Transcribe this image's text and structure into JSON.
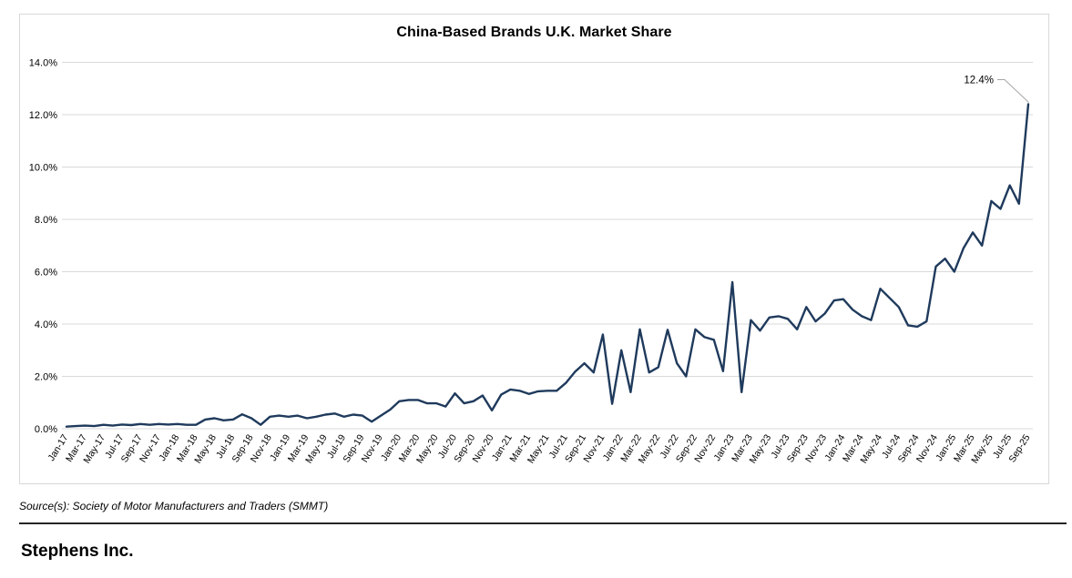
{
  "chart": {
    "colors": {
      "line": "#1f3a5c",
      "grid": "#d9d9d9",
      "frame": "#d9d9d9",
      "axis_text": "#000000",
      "annotation_text": "#000000",
      "annotation_leader": "#a6a6a6"
    }
  },
  "chart_data": {
    "type": "line",
    "title": "China-Based Brands U.K. Market Share",
    "xlabel": "",
    "ylabel": "",
    "ylim": [
      0,
      14
    ],
    "ytick_step": 2,
    "ytick_labels": [
      "0.0%",
      "2.0%",
      "4.0%",
      "6.0%",
      "8.0%",
      "10.0%",
      "12.0%",
      "14.0%"
    ],
    "x_tick_interval": 2,
    "grid": "horizontal",
    "legend": "none",
    "annotation": {
      "label": "12.4%",
      "x": "Sep-25",
      "value": 12.4
    },
    "x": [
      "Jan-17",
      "Feb-17",
      "Mar-17",
      "Apr-17",
      "May-17",
      "Jun-17",
      "Jul-17",
      "Aug-17",
      "Sep-17",
      "Oct-17",
      "Nov-17",
      "Dec-17",
      "Jan-18",
      "Feb-18",
      "Mar-18",
      "Apr-18",
      "May-18",
      "Jun-18",
      "Jul-18",
      "Aug-18",
      "Sep-18",
      "Oct-18",
      "Nov-18",
      "Dec-18",
      "Jan-19",
      "Feb-19",
      "Mar-19",
      "Apr-19",
      "May-19",
      "Jun-19",
      "Jul-19",
      "Aug-19",
      "Sep-19",
      "Oct-19",
      "Nov-19",
      "Dec-19",
      "Jan-20",
      "Feb-20",
      "Mar-20",
      "Apr-20",
      "May-20",
      "Jun-20",
      "Jul-20",
      "Aug-20",
      "Sep-20",
      "Oct-20",
      "Nov-20",
      "Dec-20",
      "Jan-21",
      "Feb-21",
      "Mar-21",
      "Apr-21",
      "May-21",
      "Jun-21",
      "Jul-21",
      "Aug-21",
      "Sep-21",
      "Oct-21",
      "Nov-21",
      "Dec-21",
      "Jan-22",
      "Feb-22",
      "Mar-22",
      "Apr-22",
      "May-22",
      "Jun-22",
      "Jul-22",
      "Aug-22",
      "Sep-22",
      "Oct-22",
      "Nov-22",
      "Dec-22",
      "Jan-23",
      "Feb-23",
      "Mar-23",
      "Apr-23",
      "May-23",
      "Jun-23",
      "Jul-23",
      "Aug-23",
      "Sep-23",
      "Oct-23",
      "Nov-23",
      "Dec-23",
      "Jan-24",
      "Feb-24",
      "Mar-24",
      "Apr-24",
      "May-24",
      "Jun-24",
      "Jul-24",
      "Aug-24",
      "Sep-24",
      "Oct-24",
      "Nov-24",
      "Dec-24",
      "Jan-25",
      "Feb-25",
      "Mar-25",
      "Apr-25",
      "May-25",
      "Jun-25",
      "Jul-25",
      "Aug-25",
      "Sep-25"
    ],
    "values": [
      0.08,
      0.1,
      0.12,
      0.1,
      0.15,
      0.12,
      0.16,
      0.14,
      0.18,
      0.15,
      0.18,
      0.16,
      0.18,
      0.15,
      0.15,
      0.35,
      0.4,
      0.32,
      0.35,
      0.55,
      0.4,
      0.15,
      0.46,
      0.5,
      0.46,
      0.5,
      0.4,
      0.46,
      0.54,
      0.58,
      0.46,
      0.54,
      0.5,
      0.27,
      0.5,
      0.73,
      1.05,
      1.1,
      1.1,
      0.97,
      0.97,
      0.85,
      1.35,
      0.97,
      1.05,
      1.27,
      0.7,
      1.3,
      1.5,
      1.45,
      1.33,
      1.43,
      1.45,
      1.45,
      1.75,
      2.18,
      2.5,
      2.15,
      3.6,
      0.95,
      3.0,
      1.4,
      3.8,
      2.15,
      2.35,
      3.78,
      2.5,
      2.0,
      3.8,
      3.5,
      3.4,
      2.2,
      5.6,
      1.4,
      4.15,
      3.75,
      4.25,
      4.3,
      4.2,
      3.8,
      4.65,
      4.1,
      4.4,
      4.9,
      4.95,
      4.55,
      4.3,
      4.15,
      5.35,
      5.0,
      4.65,
      3.95,
      3.9,
      4.1,
      6.2,
      6.5,
      6.0,
      6.9,
      7.5,
      7.0,
      8.7,
      8.4,
      9.3,
      8.6,
      12.4
    ]
  },
  "footer": {
    "source": "Source(s): Society of Motor Manufacturers and Traders (SMMT)",
    "brand": "Stephens Inc."
  }
}
